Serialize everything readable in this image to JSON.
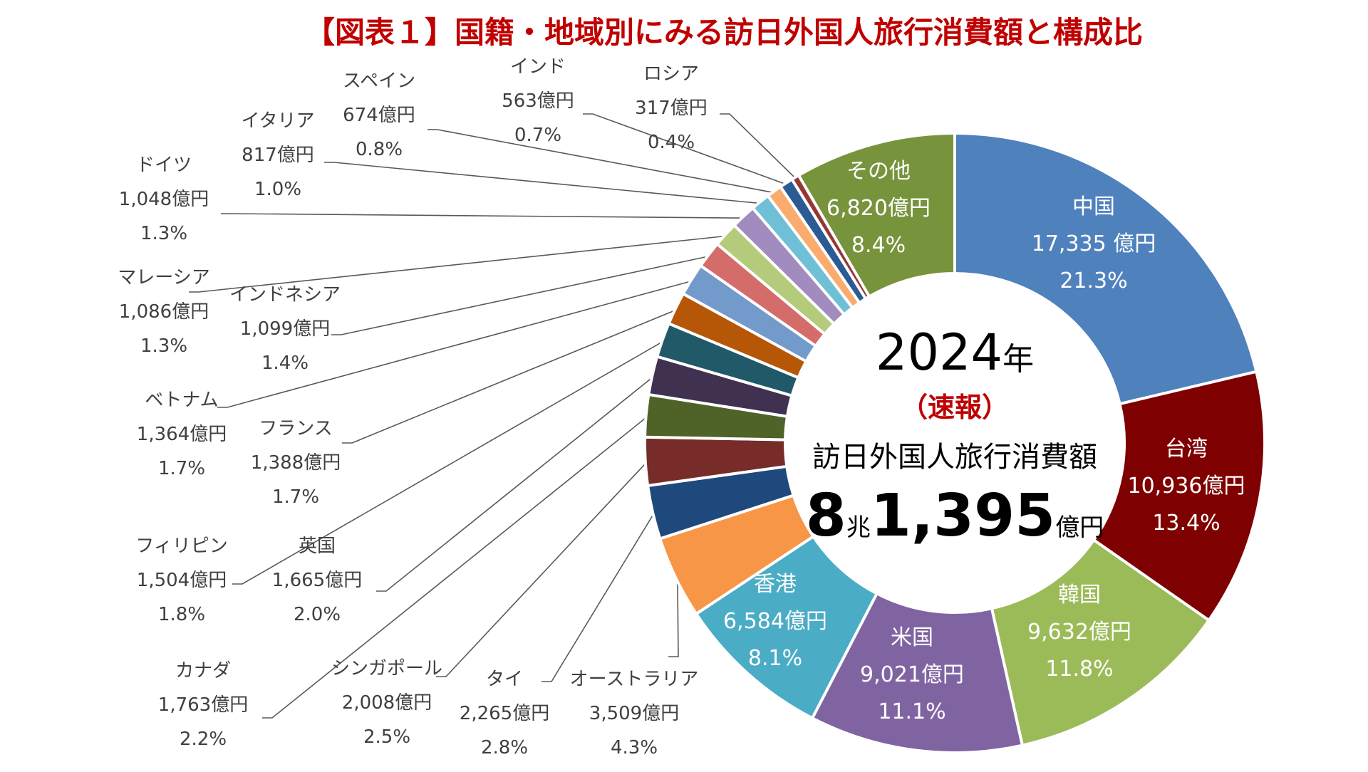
{
  "chart_data": {
    "type": "pie",
    "title": "【図表１】国籍・地域別にみる訪日外国人旅行消費額と構成比",
    "center": {
      "year": "2024",
      "year_unit": "年",
      "status": "（速報）",
      "label": "訪日外国人旅行消費額",
      "total_cho": "8",
      "cho_unit": "兆",
      "total_oku": "1,395",
      "oku_unit": "億円"
    },
    "slices": [
      {
        "name": "中国",
        "value_text": "17,335 億円",
        "pct_text": "21.3%",
        "pct": 21.3,
        "color": "#4f81bd"
      },
      {
        "name": "台湾",
        "value_text": "10,936億円",
        "pct_text": "13.4%",
        "pct": 13.4,
        "color": "#7f0000"
      },
      {
        "name": "韓国",
        "value_text": "9,632億円",
        "pct_text": "11.8%",
        "pct": 11.8,
        "color": "#9bbb59"
      },
      {
        "name": "米国",
        "value_text": "9,021億円",
        "pct_text": "11.1%",
        "pct": 11.1,
        "color": "#8064a2"
      },
      {
        "name": "香港",
        "value_text": "6,584億円",
        "pct_text": "8.1%",
        "pct": 8.1,
        "color": "#4bacc6"
      },
      {
        "name": "オーストラリア",
        "value_text": "3,509億円",
        "pct_text": "4.3%",
        "pct": 4.3,
        "color": "#f79646"
      },
      {
        "name": "タイ",
        "value_text": "2,265億円",
        "pct_text": "2.8%",
        "pct": 2.8,
        "color": "#1f497d"
      },
      {
        "name": "シンガポール",
        "value_text": "2,008億円",
        "pct_text": "2.5%",
        "pct": 2.5,
        "color": "#772c2a"
      },
      {
        "name": "カナダ",
        "value_text": "1,763億円",
        "pct_text": "2.2%",
        "pct": 2.2,
        "color": "#4f6228"
      },
      {
        "name": "英国",
        "value_text": "1,665億円",
        "pct_text": "2.0%",
        "pct": 2.0,
        "color": "#403151"
      },
      {
        "name": "フィリピン",
        "value_text": "1,504億円",
        "pct_text": "1.8%",
        "pct": 1.8,
        "color": "#215968"
      },
      {
        "name": "フランス",
        "value_text": "1,388億円",
        "pct_text": "1.7%",
        "pct": 1.7,
        "color": "#b65708"
      },
      {
        "name": "ベトナム",
        "value_text": "1,364億円",
        "pct_text": "1.7%",
        "pct": 1.7,
        "color": "#729aca"
      },
      {
        "name": "インドネシア",
        "value_text": "1,099億円",
        "pct_text": "1.4%",
        "pct": 1.4,
        "color": "#d46d6a"
      },
      {
        "name": "マレーシア",
        "value_text": "1,086億円",
        "pct_text": "1.3%",
        "pct": 1.3,
        "color": "#b3cb7a"
      },
      {
        "name": "ドイツ",
        "value_text": "1,048億円",
        "pct_text": "1.3%",
        "pct": 1.3,
        "color": "#a28bbf"
      },
      {
        "name": "イタリア",
        "value_text": "817億円",
        "pct_text": "1.0%",
        "pct": 1.0,
        "color": "#6fc0d6"
      },
      {
        "name": "スペイン",
        "value_text": "674億円",
        "pct_text": "0.8%",
        "pct": 0.8,
        "color": "#f9ac6e"
      },
      {
        "name": "インド",
        "value_text": "563億円",
        "pct_text": "0.7%",
        "pct": 0.7,
        "color": "#2c5b94"
      },
      {
        "name": "ロシア",
        "value_text": "317億円",
        "pct_text": "0.4%",
        "pct": 0.4,
        "color": "#943735"
      },
      {
        "name": "その他",
        "value_text": "6,820億円",
        "pct_text": "8.4%",
        "pct": 8.4,
        "color": "#77933c"
      }
    ],
    "colors": {
      "title": "#c00000",
      "status": "#c00000",
      "inside_text": "#ffffff",
      "outside_text": "#404040",
      "leader": "#595959"
    }
  }
}
